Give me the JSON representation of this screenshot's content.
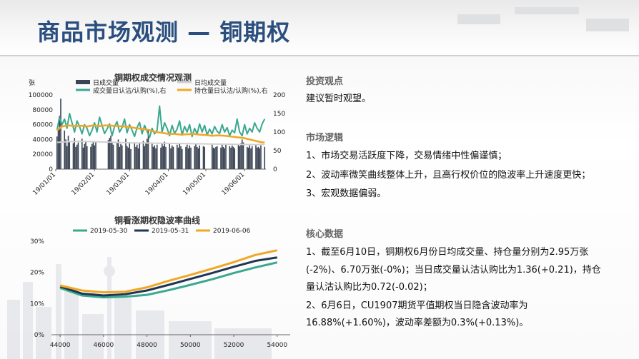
{
  "title": "商品市场观测 — 铜期权",
  "colors": {
    "title": "#2a4f7f",
    "teal": "#3aa88f",
    "navy": "#1f3553",
    "orange": "#f0a724",
    "gray": "#c8c8c8",
    "bar": "#3b4454"
  },
  "chart_data": [
    {
      "type": "bar",
      "title": "铜期权成交情况观测",
      "ylabel_left": "张",
      "left_ticks": [
        0,
        20000,
        40000,
        60000,
        80000,
        100000
      ],
      "left_tick_labels": [
        "0",
        "20000",
        "40000",
        "60000",
        "80000",
        "100000"
      ],
      "right_ticks": [
        0,
        50,
        100,
        150,
        200
      ],
      "right_tick_labels": [
        "0",
        "50",
        "100",
        "150",
        "200"
      ],
      "ylim_left": [
        0,
        100000
      ],
      "ylim_right": [
        0,
        200
      ],
      "x_tick_labels": [
        "19/01/01",
        "19/02/01",
        "19/03/01",
        "19/04/01",
        "19/05/01",
        "19/06/01"
      ],
      "x_ticks_day": [
        0,
        31,
        59,
        90,
        120,
        151
      ],
      "x_range_day": [
        0,
        168
      ],
      "series": [
        {
          "name": "日成交量",
          "kind": "bar",
          "axis": "left",
          "color": "#3b4454",
          "day": [
            1,
            2,
            3,
            4,
            7,
            8,
            9,
            10,
            11,
            14,
            15,
            16,
            17,
            18,
            21,
            22,
            23,
            24,
            25,
            28,
            29,
            30,
            31,
            32,
            42,
            43,
            44,
            45,
            46,
            49,
            50,
            51,
            52,
            53,
            56,
            57,
            58,
            59,
            60,
            63,
            64,
            65,
            66,
            67,
            70,
            71,
            72,
            73,
            74,
            77,
            78,
            79,
            80,
            81,
            84,
            85,
            86,
            87,
            88,
            91,
            92,
            93,
            94,
            97,
            98,
            99,
            100,
            101,
            104,
            105,
            106,
            107,
            108,
            111,
            112,
            113,
            114,
            115,
            118,
            119,
            125,
            126,
            127,
            128,
            129,
            132,
            133,
            134,
            135,
            136,
            139,
            140,
            141,
            142,
            143,
            146,
            147,
            148,
            149,
            150,
            153,
            154,
            155,
            156,
            157,
            160,
            161,
            162,
            163,
            164,
            167
          ],
          "values": [
            44000,
            53000,
            72000,
            95000,
            52000,
            40000,
            31000,
            45000,
            38000,
            35000,
            42000,
            30000,
            33000,
            36000,
            41000,
            29000,
            34000,
            37000,
            31000,
            30000,
            34000,
            38000,
            32000,
            36000,
            39000,
            42000,
            45000,
            37000,
            33000,
            35000,
            40000,
            30000,
            34000,
            32000,
            41000,
            31000,
            29000,
            35000,
            27000,
            36000,
            30000,
            33000,
            28000,
            35000,
            38000,
            31000,
            36000,
            41000,
            52000,
            34000,
            30000,
            32000,
            28000,
            33000,
            29000,
            35000,
            31000,
            37000,
            30000,
            34000,
            28000,
            32000,
            30000,
            33000,
            29000,
            35000,
            31000,
            27000,
            30000,
            33000,
            28000,
            32000,
            29000,
            31000,
            35000,
            30000,
            28000,
            32000,
            31000,
            30000,
            33000,
            29000,
            28000,
            30000,
            31000,
            29000,
            33000,
            30000,
            28000,
            34000,
            31000,
            29000,
            32000,
            30000,
            28000,
            33000,
            31000,
            35000,
            40000,
            36000,
            30000,
            29000,
            32000,
            28000,
            31000,
            33000,
            29000,
            30000,
            28000,
            32000,
            30000
          ]
        },
        {
          "name": "日均成交量",
          "kind": "line",
          "axis": "left",
          "color": "#d0d0d0",
          "day": [
            1,
            10,
            20,
            30,
            40,
            60,
            80,
            100,
            120,
            140,
            160,
            167
          ],
          "values": [
            36000,
            37000,
            37500,
            37000,
            36500,
            35500,
            35000,
            34500,
            34000,
            33500,
            33000,
            33000
          ]
        },
        {
          "name": "成交量日认沽/认购(%),右",
          "kind": "line",
          "axis": "right",
          "color": "#3aa88f",
          "day": [
            1,
            3,
            5,
            7,
            9,
            11,
            13,
            15,
            17,
            19,
            21,
            23,
            25,
            27,
            29,
            31,
            33,
            35,
            37,
            39,
            41,
            43,
            45,
            47,
            49,
            51,
            53,
            55,
            57,
            59,
            61,
            63,
            65,
            67,
            69,
            71,
            73,
            75,
            77,
            79,
            81,
            83,
            85,
            87,
            89,
            91,
            93,
            95,
            97,
            99,
            101,
            103,
            105,
            107,
            109,
            111,
            113,
            115,
            117,
            119,
            121,
            123,
            125,
            127,
            129,
            131,
            133,
            135,
            137,
            139,
            141,
            143,
            145,
            147,
            149,
            151,
            153,
            155,
            157,
            159,
            161,
            163,
            165,
            167
          ],
          "values": [
            105,
            140,
            120,
            135,
            110,
            150,
            125,
            100,
            130,
            115,
            95,
            120,
            110,
            90,
            105,
            125,
            100,
            140,
            118,
            96,
            108,
            122,
            90,
            115,
            128,
            100,
            112,
            135,
            98,
            120,
            105,
            88,
            112,
            126,
            95,
            118,
            102,
            85,
            110,
            95,
            105,
            170,
            100,
            125,
            110,
            90,
            118,
            96,
            108,
            130,
            92,
            115,
            100,
            120,
            88,
            110,
            95,
            122,
            100,
            118,
            92,
            108,
            95,
            115,
            102,
            96,
            120,
            100,
            112,
            90,
            105,
            98,
            135,
            100,
            90,
            120,
            95,
            110,
            100,
            125,
            110,
            100,
            122,
            135
          ]
        },
        {
          "name": "持仓量日认沽/认购(%),右",
          "kind": "line",
          "axis": "right",
          "color": "#f0a724",
          "day": [
            1,
            5,
            10,
            15,
            20,
            25,
            30,
            35,
            40,
            45,
            50,
            55,
            60,
            65,
            70,
            75,
            80,
            85,
            90,
            95,
            100,
            105,
            110,
            115,
            120,
            125,
            130,
            135,
            140,
            145,
            150,
            155,
            160,
            165,
            167
          ],
          "values": [
            105,
            115,
            118,
            116,
            117,
            115,
            118,
            116,
            118,
            117,
            116,
            115,
            113,
            110,
            108,
            105,
            100,
            98,
            95,
            95,
            93,
            94,
            95,
            93,
            92,
            90,
            91,
            90,
            88,
            86,
            84,
            80,
            76,
            72,
            72
          ]
        }
      ],
      "legend": [
        "日成交量",
        "日均成交量",
        "成交量日认沽/认购(%),右",
        "持仓量日认沽/认购(%),右"
      ]
    },
    {
      "type": "line",
      "title": "铜看涨期权隐波率曲线",
      "x": [
        44000,
        45000,
        46000,
        47000,
        48000,
        49000,
        50000,
        51000,
        52000,
        53000,
        54000
      ],
      "x_tick_labels": [
        "44000",
        "46000",
        "48000",
        "50000",
        "52000",
        "54000"
      ],
      "x_ticks": [
        44000,
        46000,
        48000,
        50000,
        52000,
        54000
      ],
      "xlim": [
        43600,
        54600
      ],
      "y_tick_labels": [
        "0%",
        "10%",
        "20%",
        "30%"
      ],
      "y_ticks": [
        0,
        10,
        20,
        30
      ],
      "ylim": [
        0,
        30
      ],
      "series": [
        {
          "name": "2019-05-30",
          "color": "#3aa88f",
          "values": [
            15.0,
            12.6,
            12.0,
            12.2,
            12.8,
            14.3,
            16.0,
            17.8,
            19.8,
            21.6,
            23.2
          ]
        },
        {
          "name": "2019-05-31",
          "color": "#1f3553",
          "values": [
            15.5,
            13.2,
            12.6,
            13.0,
            14.2,
            16.0,
            17.9,
            19.8,
            21.8,
            23.7,
            24.8
          ]
        },
        {
          "name": "2019-06-06",
          "color": "#f0a724",
          "values": [
            15.8,
            14.2,
            13.6,
            13.8,
            15.2,
            17.3,
            19.2,
            21.2,
            23.3,
            25.6,
            27.1
          ]
        }
      ]
    }
  ],
  "right": {
    "s1_head": "投资观点",
    "s1_line1": "建议暂时观望。",
    "s2_head": "市场逻辑",
    "s2_line1": "1、市场交易活跃度下降，交易情绪中性偏谨慎；",
    "s2_line2": "2、波动率微笑曲线整体上升，且高行权价位的隐波率上升速度更快；",
    "s2_line3": "3、宏观数据偏弱。",
    "s3_head": "核心数据",
    "s3_line1": "1、截至6月10日，铜期权6月份日均成交量、持仓量分别为2.95万张",
    "s3_line2": "(-2%)、6.70万张(-0%)；当日成交量认沽认购比为1.36(+0.21)，持仓",
    "s3_line3": "量认沽认购比为0.72(-0.02)；",
    "s3_line4": "2、6月6日，CU1907期货平值期权当日隐含波动率为",
    "s3_line5": "16.88%(+1.60%)，波动率差额为0.3%(+0.13%)。"
  }
}
